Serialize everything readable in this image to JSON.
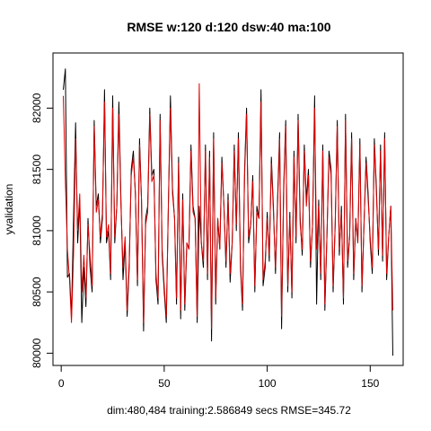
{
  "chart_data": {
    "type": "line",
    "title": "RMSE  w:120 d:120 dsw:40 ma:100",
    "xlabel": "dim:480,484 training:2.586849 secs RMSE=345.72",
    "ylabel": "yvalidation",
    "xlim": [
      -4,
      166
    ],
    "ylim": [
      79900,
      82450
    ],
    "xticks": [
      0,
      50,
      100,
      150
    ],
    "yticks": [
      80000,
      80500,
      81000,
      81500,
      82000
    ],
    "grid": false,
    "legend": "none",
    "series": [
      {
        "color": "#000000",
        "x": [
          1,
          2,
          3,
          4,
          5,
          6,
          7,
          8,
          9,
          10,
          11,
          12,
          13,
          14,
          15,
          16,
          17,
          18,
          19,
          20,
          21,
          22,
          23,
          24,
          25,
          26,
          27,
          28,
          29,
          30,
          31,
          32,
          33,
          34,
          35,
          36,
          37,
          38,
          39,
          40,
          41,
          42,
          43,
          44,
          45,
          46,
          47,
          48,
          49,
          50,
          51,
          52,
          53,
          54,
          55,
          56,
          57,
          58,
          59,
          60,
          61,
          62,
          63,
          64,
          65,
          66,
          67,
          68,
          69,
          70,
          71,
          72,
          73,
          74,
          75,
          76,
          77,
          78,
          79,
          80,
          81,
          82,
          83,
          84,
          85,
          86,
          87,
          88,
          89,
          90,
          91,
          92,
          93,
          94,
          95,
          96,
          97,
          98,
          99,
          100,
          101,
          102,
          103,
          104,
          105,
          106,
          107,
          108,
          109,
          110,
          111,
          112,
          113,
          114,
          115,
          116,
          117,
          118,
          119,
          120,
          121,
          122,
          123,
          124,
          125,
          126,
          127,
          128,
          129,
          130,
          131,
          132,
          133,
          134,
          135,
          136,
          137,
          138,
          139,
          140,
          141,
          142,
          143,
          144,
          145,
          146,
          147,
          148,
          149,
          150,
          151,
          152,
          153,
          154,
          155,
          156,
          157,
          158,
          159,
          160,
          161
        ],
        "y": [
          82150,
          82320,
          80620,
          80650,
          80300,
          81100,
          81880,
          80900,
          81250,
          80250,
          80700,
          80380,
          81100,
          80700,
          80500,
          81900,
          81200,
          81300,
          80900,
          81100,
          82150,
          80900,
          81000,
          80600,
          82100,
          80900,
          81200,
          82050,
          81250,
          80600,
          80900,
          80300,
          80700,
          81500,
          81650,
          81300,
          80550,
          81750,
          81250,
          80180,
          81100,
          81200,
          82000,
          81450,
          81500,
          80600,
          80400,
          81950,
          80800,
          80500,
          80250,
          81200,
          82100,
          81350,
          81100,
          80400,
          81600,
          80280,
          81300,
          80350,
          80900,
          80850,
          81700,
          81200,
          81100,
          80250,
          81200,
          80900,
          80700,
          81700,
          80600,
          81650,
          80100,
          81800,
          80400,
          81100,
          80850,
          81600,
          81200,
          80700,
          81300,
          80580,
          80900,
          81700,
          81000,
          81800,
          80700,
          80350,
          81500,
          82000,
          80900,
          81050,
          81450,
          80500,
          81200,
          81100,
          82150,
          80550,
          80700,
          81150,
          80750,
          81600,
          81200,
          80650,
          81250,
          81800,
          80200,
          81350,
          81900,
          80500,
          81150,
          80450,
          81650,
          80900,
          81950,
          81100,
          80800,
          81700,
          81250,
          81500,
          80700,
          81050,
          82100,
          80400,
          81250,
          80600,
          81700,
          80350,
          80950,
          81650,
          81500,
          80500,
          81050,
          81900,
          80800,
          81200,
          80400,
          81950,
          80700,
          80950,
          81800,
          80600,
          81100,
          80900,
          81750,
          80500,
          81050,
          81600,
          81300,
          80900,
          80650,
          81750,
          81350,
          80800,
          81700,
          80750,
          81800,
          80600,
          80950,
          81200,
          79980
        ]
      },
      {
        "color": "#dd0000",
        "x": [
          1,
          2,
          3,
          4,
          5,
          6,
          7,
          8,
          9,
          10,
          11,
          12,
          13,
          14,
          15,
          16,
          17,
          18,
          19,
          20,
          21,
          22,
          23,
          24,
          25,
          26,
          27,
          28,
          29,
          30,
          31,
          32,
          33,
          34,
          35,
          36,
          37,
          38,
          39,
          40,
          41,
          42,
          43,
          44,
          45,
          46,
          47,
          48,
          49,
          50,
          51,
          52,
          53,
          54,
          55,
          56,
          57,
          58,
          59,
          60,
          61,
          62,
          63,
          64,
          65,
          66,
          67,
          68,
          69,
          70,
          71,
          72,
          73,
          74,
          75,
          76,
          77,
          78,
          79,
          80,
          81,
          82,
          83,
          84,
          85,
          86,
          87,
          88,
          89,
          90,
          91,
          92,
          93,
          94,
          95,
          96,
          97,
          98,
          99,
          100,
          101,
          102,
          103,
          104,
          105,
          106,
          107,
          108,
          109,
          110,
          111,
          112,
          113,
          114,
          115,
          116,
          117,
          118,
          119,
          120,
          121,
          122,
          123,
          124,
          125,
          126,
          127,
          128,
          129,
          130,
          131,
          132,
          133,
          134,
          135,
          136,
          137,
          138,
          139,
          140,
          141,
          142,
          143,
          144,
          145,
          146,
          147,
          148,
          149,
          150,
          151,
          152,
          153,
          154,
          155,
          156,
          157,
          158,
          159,
          160,
          161
        ],
        "y": [
          82100,
          81400,
          80850,
          80600,
          80250,
          80800,
          81750,
          81000,
          81300,
          80500,
          80800,
          80450,
          81050,
          80800,
          80550,
          81850,
          81150,
          81250,
          80950,
          81150,
          82050,
          80950,
          81050,
          80650,
          82000,
          80950,
          81200,
          81950,
          81200,
          80700,
          80950,
          80350,
          80750,
          81450,
          81600,
          81300,
          80600,
          81700,
          81250,
          80250,
          81050,
          81150,
          81950,
          81400,
          81450,
          80650,
          80450,
          81900,
          80850,
          80550,
          80300,
          81200,
          82000,
          81300,
          81100,
          80450,
          81550,
          80350,
          81250,
          80400,
          80900,
          80850,
          81650,
          81150,
          81100,
          80300,
          82200,
          80900,
          80750,
          81650,
          80650,
          81600,
          80200,
          81750,
          80450,
          81100,
          80850,
          81550,
          81200,
          80750,
          81250,
          80650,
          80900,
          81650,
          81050,
          81750,
          80750,
          80400,
          81450,
          81950,
          80950,
          81050,
          81400,
          80550,
          81150,
          81100,
          82050,
          80600,
          80750,
          81100,
          80800,
          81550,
          81150,
          80700,
          81200,
          81750,
          80300,
          81300,
          81850,
          80550,
          81100,
          80500,
          81600,
          80950,
          81900,
          81050,
          80850,
          81650,
          81200,
          81450,
          80750,
          81050,
          82000,
          80850,
          81200,
          80650,
          81650,
          80400,
          80950,
          81600,
          81450,
          80550,
          81050,
          81850,
          80850,
          81150,
          80450,
          81900,
          80750,
          80950,
          81750,
          80650,
          81100,
          80900,
          81700,
          80550,
          81050,
          81550,
          81250,
          80950,
          80700,
          81700,
          81300,
          80850,
          81650,
          80800,
          81750,
          80650,
          80950,
          81200,
          80350
        ]
      }
    ]
  }
}
